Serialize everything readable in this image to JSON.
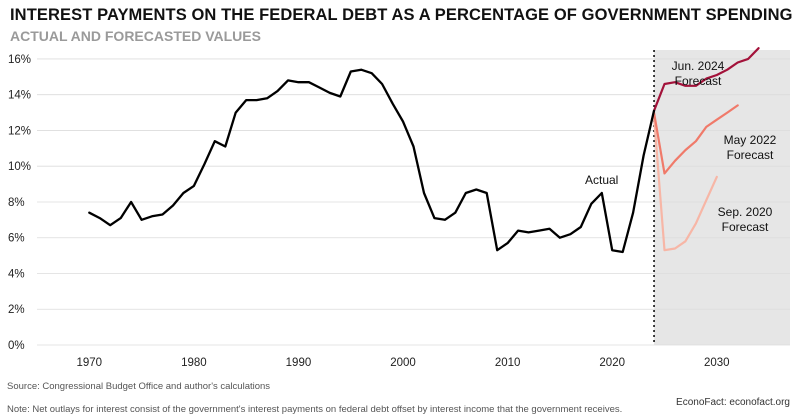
{
  "header": {
    "title": "INTEREST PAYMENTS ON THE FEDERAL DEBT AS A PERCENTAGE OF GOVERNMENT SPENDING",
    "subtitle": "ACTUAL AND FORECASTED VALUES"
  },
  "footer": {
    "source": "Source: Congressional Budget Office and author's calculations",
    "note": "Note: Net outlays for interest consist of the government's interest payments on federal debt offset by interest income that the government receives.",
    "credit": "EconoFact: econofact.org"
  },
  "chart_data": {
    "type": "line",
    "xlim": [
      1965,
      2037
    ],
    "ylim": [
      0,
      16.5
    ],
    "x_ticks": [
      1970,
      1980,
      1990,
      2000,
      2010,
      2020,
      2030
    ],
    "y_ticks": [
      0,
      2,
      4,
      6,
      8,
      10,
      12,
      14,
      16
    ],
    "y_tick_labels": [
      "0%",
      "2%",
      "4%",
      "6%",
      "8%",
      "10%",
      "12%",
      "14%",
      "16%"
    ],
    "grid": "horizontal",
    "forecast_region_start": 2024,
    "forecast_region_color": "#e6e6e6",
    "annotations": {
      "actual": "Actual",
      "jun2024": [
        "Jun. 2024",
        "Forecast"
      ],
      "may2022": [
        "May 2022",
        "Forecast"
      ],
      "sep2020": [
        "Sep. 2020",
        "Forecast"
      ]
    },
    "series": [
      {
        "key": "actual",
        "color": "#000000",
        "x": [
          1970,
          1971,
          1972,
          1973,
          1974,
          1975,
          1976,
          1977,
          1978,
          1979,
          1980,
          1981,
          1982,
          1983,
          1984,
          1985,
          1986,
          1987,
          1988,
          1989,
          1990,
          1991,
          1992,
          1993,
          1994,
          1995,
          1996,
          1997,
          1998,
          1999,
          2000,
          2001,
          2002,
          2003,
          2004,
          2005,
          2006,
          2007,
          2008,
          2009,
          2010,
          2011,
          2012,
          2013,
          2014,
          2015,
          2016,
          2017,
          2018,
          2019,
          2020,
          2021,
          2022,
          2023,
          2024
        ],
        "values": [
          7.4,
          7.1,
          6.7,
          7.1,
          8.0,
          7.0,
          7.2,
          7.3,
          7.8,
          8.5,
          8.9,
          10.1,
          11.4,
          11.1,
          13.0,
          13.7,
          13.7,
          13.8,
          14.2,
          14.8,
          14.7,
          14.7,
          14.4,
          14.1,
          13.9,
          15.3,
          15.4,
          15.2,
          14.6,
          13.5,
          12.5,
          11.1,
          8.5,
          7.1,
          7.0,
          7.4,
          8.5,
          8.7,
          8.5,
          5.3,
          5.7,
          6.4,
          6.3,
          6.4,
          6.5,
          6.0,
          6.2,
          6.6,
          7.9,
          8.5,
          5.3,
          5.2,
          7.4,
          10.6,
          13.1
        ]
      },
      {
        "key": "jun2024",
        "color": "#a3123a",
        "x": [
          2024,
          2025,
          2026,
          2027,
          2028,
          2029,
          2030,
          2031,
          2032,
          2033,
          2034
        ],
        "values": [
          13.1,
          14.6,
          14.7,
          14.5,
          14.5,
          14.9,
          15.1,
          15.4,
          15.8,
          16.0,
          16.6
        ]
      },
      {
        "key": "may2022",
        "color": "#f07a6a",
        "x": [
          2024,
          2025,
          2026,
          2027,
          2028,
          2029,
          2030,
          2031,
          2032
        ],
        "values": [
          13.0,
          9.6,
          10.3,
          10.9,
          11.4,
          12.2,
          12.6,
          13.0,
          13.4
        ]
      },
      {
        "key": "sep2020",
        "color": "#f7b6a6",
        "x": [
          2024,
          2025,
          2026,
          2027,
          2028,
          2029,
          2030
        ],
        "values": [
          12.8,
          5.3,
          5.4,
          5.8,
          6.8,
          8.1,
          9.4
        ]
      }
    ]
  }
}
